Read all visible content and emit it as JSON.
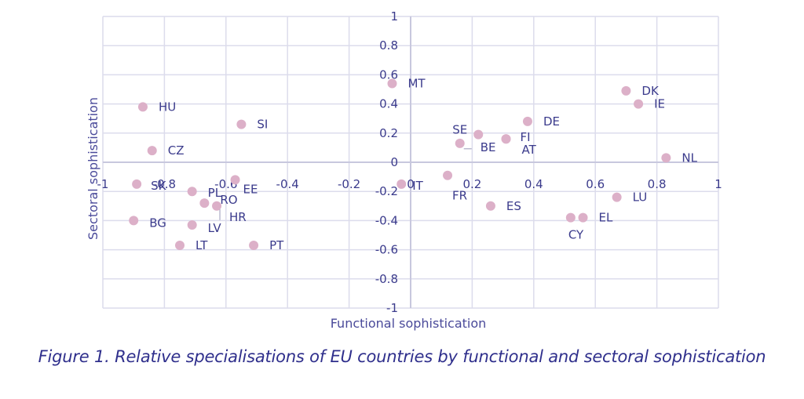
{
  "chart_data": {
    "type": "scatter",
    "xlabel": "Functional sophistication",
    "ylabel": "Sectoral sophistication",
    "xlim": [
      -1,
      1
    ],
    "ylim": [
      -1,
      1
    ],
    "x_ticks": [
      "-1",
      "-0.8",
      "-0.6",
      "-0.4",
      "-0.2",
      "0",
      "0.2",
      "0.4",
      "0.6",
      "0.8",
      "1"
    ],
    "y_ticks": [
      "1",
      "0.8",
      "0.6",
      "0.4",
      "0.2",
      "0",
      "-0.2",
      "-0.4",
      "-0.6",
      "-0.8",
      "-1"
    ],
    "grid": true,
    "colors": {
      "point": "#dcb0c8",
      "grid": "#dcdcec",
      "axis": "#c8c8de",
      "text": "#3b3b8c"
    },
    "points": [
      {
        "label": "MT",
        "x": -0.06,
        "y": 0.54
      },
      {
        "label": "DK",
        "x": 0.7,
        "y": 0.49
      },
      {
        "label": "IE",
        "x": 0.74,
        "y": 0.4
      },
      {
        "label": "HU",
        "x": -0.87,
        "y": 0.38
      },
      {
        "label": "SI",
        "x": -0.55,
        "y": 0.26
      },
      {
        "label": "DE",
        "x": 0.38,
        "y": 0.28
      },
      {
        "label": "SE",
        "x": 0.22,
        "y": 0.19
      },
      {
        "label": "FI",
        "x": 0.31,
        "y": 0.16
      },
      {
        "label": "AT",
        "x": 0.31,
        "y": 0.16
      },
      {
        "label": "BE",
        "x": 0.16,
        "y": 0.13
      },
      {
        "label": "CZ",
        "x": -0.84,
        "y": 0.08
      },
      {
        "label": "NL",
        "x": 0.83,
        "y": 0.03
      },
      {
        "label": "FR",
        "x": 0.12,
        "y": -0.09
      },
      {
        "label": "IT",
        "x": -0.03,
        "y": -0.15
      },
      {
        "label": "EE",
        "x": -0.57,
        "y": -0.12
      },
      {
        "label": "SK",
        "x": -0.89,
        "y": -0.15
      },
      {
        "label": "PL",
        "x": -0.71,
        "y": -0.2
      },
      {
        "label": "RO",
        "x": -0.67,
        "y": -0.28
      },
      {
        "label": "HR",
        "x": -0.63,
        "y": -0.3
      },
      {
        "label": "LU",
        "x": 0.67,
        "y": -0.24
      },
      {
        "label": "ES",
        "x": 0.26,
        "y": -0.3
      },
      {
        "label": "CY",
        "x": 0.52,
        "y": -0.38
      },
      {
        "label": "EL",
        "x": 0.56,
        "y": -0.38
      },
      {
        "label": "BG",
        "x": -0.9,
        "y": -0.4
      },
      {
        "label": "LV",
        "x": -0.71,
        "y": -0.43
      },
      {
        "label": "LT",
        "x": -0.75,
        "y": -0.57
      },
      {
        "label": "PT",
        "x": -0.51,
        "y": -0.57
      }
    ]
  },
  "caption": "Figure 1. Relative specialisations of EU countries by functional and sectoral sophistication"
}
